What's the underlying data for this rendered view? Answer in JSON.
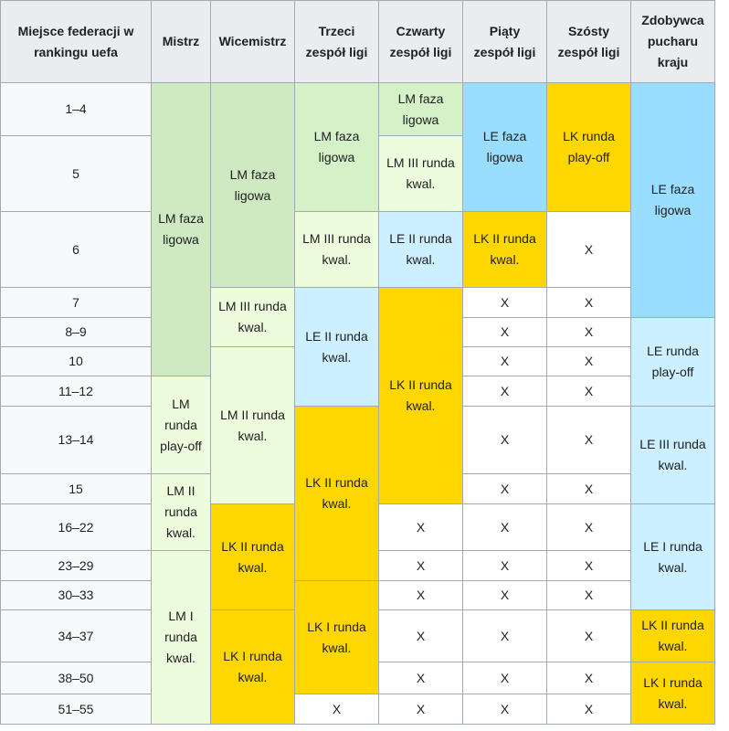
{
  "table": {
    "header": [
      "Miejsce federacji w rankingu uefa",
      "Mistrz",
      "Wicemistrz",
      "Trzeci zespół ligi",
      "Czwarty zespół ligi",
      "Piąty zespół ligi",
      "Szósty zespół ligi",
      "Zdobywca pucharu kraju"
    ],
    "rows": [
      {
        "label": "1–4",
        "cells": [
          {
            "col": 1,
            "text": "LM faza ligowa",
            "rowspan": 6,
            "color": "#cfe9c2"
          },
          {
            "col": 2,
            "text": "LM faza ligowa",
            "rowspan": 3,
            "color": "#cfe9c2"
          },
          {
            "col": 3,
            "text": "LM faza ligowa",
            "rowspan": 2,
            "color": "#d5f1c8"
          },
          {
            "col": 4,
            "text": "LM faza ligowa",
            "color": "#d5f1c8"
          },
          {
            "col": 5,
            "text": "LE faza ligowa",
            "rowspan": 2,
            "color": "#99ddff"
          },
          {
            "col": 6,
            "text": "LK runda play-off",
            "rowspan": 2,
            "color": "#ffd700"
          },
          {
            "col": 7,
            "text": "LE faza ligowa",
            "rowspan": 4,
            "color": "#99ddff"
          }
        ]
      },
      {
        "label": "5",
        "cells": [
          {
            "col": 4,
            "text": "LM III runda kwal.",
            "color": "#ecfcdd"
          }
        ]
      },
      {
        "label": "6",
        "cells": [
          {
            "col": 3,
            "text": "LM III runda kwal.",
            "color": "#ecfcdd"
          },
          {
            "col": 4,
            "text": "LE II runda kwal.",
            "color": "#ccf0ff"
          },
          {
            "col": 5,
            "text": "LK II runda kwal.",
            "color": "#ffd700"
          },
          {
            "col": 6,
            "text": "X"
          }
        ]
      },
      {
        "label": "7",
        "cells": [
          {
            "col": 2,
            "text": "LM III runda kwal.",
            "rowspan": 2,
            "color": "#ecfcdd"
          },
          {
            "col": 3,
            "text": "LE II runda kwal.",
            "rowspan": 4,
            "color": "#ccf0ff"
          },
          {
            "col": 4,
            "text": "LK II runda kwal.",
            "rowspan": 6,
            "color": "#ffd700"
          },
          {
            "col": 5,
            "text": "X"
          },
          {
            "col": 6,
            "text": "X"
          }
        ]
      },
      {
        "label": "8–9",
        "cells": [
          {
            "col": 5,
            "text": "X"
          },
          {
            "col": 6,
            "text": "X"
          },
          {
            "col": 7,
            "text": "LE runda play-off",
            "rowspan": 3,
            "color": "#ccf0ff"
          }
        ]
      },
      {
        "label": "10",
        "cells": [
          {
            "col": 2,
            "text": "LM II runda kwal.",
            "rowspan": 4,
            "color": "#ecfcdd"
          },
          {
            "col": 5,
            "text": "X"
          },
          {
            "col": 6,
            "text": "X"
          }
        ]
      },
      {
        "label": "11–12",
        "cells": [
          {
            "col": 1,
            "text": "LM runda play-off",
            "rowspan": 2,
            "color": "#ecfcdd"
          },
          {
            "col": 5,
            "text": "X"
          },
          {
            "col": 6,
            "text": "X"
          }
        ]
      },
      {
        "label": "13–14",
        "cells": [
          {
            "col": 3,
            "text": "LK II runda kwal.",
            "rowspan": 4,
            "color": "#ffd700"
          },
          {
            "col": 5,
            "text": "X"
          },
          {
            "col": 6,
            "text": "X"
          },
          {
            "col": 7,
            "text": "LE III runda kwal.",
            "rowspan": 2,
            "color": "#ccf0ff"
          }
        ]
      },
      {
        "label": "15",
        "cells": [
          {
            "col": 1,
            "text": "LM II runda kwal.",
            "rowspan": 2,
            "color": "#ecfcdd"
          },
          {
            "col": 5,
            "text": "X"
          },
          {
            "col": 6,
            "text": "X"
          }
        ]
      },
      {
        "label": "16–22",
        "cells": [
          {
            "col": 2,
            "text": "LK II runda kwal.",
            "rowspan": 3,
            "color": "#ffd700"
          },
          {
            "col": 4,
            "text": "X"
          },
          {
            "col": 5,
            "text": "X"
          },
          {
            "col": 6,
            "text": "X"
          },
          {
            "col": 7,
            "text": "LE I runda kwal.",
            "rowspan": 3,
            "color": "#ccf0ff"
          }
        ]
      },
      {
        "label": "23–29",
        "cells": [
          {
            "col": 1,
            "text": "LM I runda kwal.",
            "rowspan": 5,
            "color": "#ecfcdd"
          },
          {
            "col": 4,
            "text": "X"
          },
          {
            "col": 5,
            "text": "X"
          },
          {
            "col": 6,
            "text": "X"
          }
        ]
      },
      {
        "label": "30–33",
        "cells": [
          {
            "col": 3,
            "text": "LK I runda kwal.",
            "rowspan": 3,
            "color": "#ffd700"
          },
          {
            "col": 4,
            "text": "X"
          },
          {
            "col": 5,
            "text": "X"
          },
          {
            "col": 6,
            "text": "X"
          }
        ]
      },
      {
        "label": "34–37",
        "cells": [
          {
            "col": 2,
            "text": "LK I runda kwal.",
            "rowspan": 3,
            "color": "#ffd700"
          },
          {
            "col": 4,
            "text": "X"
          },
          {
            "col": 5,
            "text": "X"
          },
          {
            "col": 6,
            "text": "X"
          },
          {
            "col": 7,
            "text": "LK II runda kwal.",
            "color": "#ffd700"
          }
        ]
      },
      {
        "label": "38–50",
        "cells": [
          {
            "col": 4,
            "text": "X"
          },
          {
            "col": 5,
            "text": "X"
          },
          {
            "col": 6,
            "text": "X"
          },
          {
            "col": 7,
            "text": "LK I runda kwal.",
            "rowspan": 2,
            "color": "#ffd700"
          }
        ]
      },
      {
        "label": "51–55",
        "cells": [
          {
            "col": 3,
            "text": "X"
          },
          {
            "col": 4,
            "text": "X"
          },
          {
            "col": 5,
            "text": "X"
          },
          {
            "col": 6,
            "text": "X"
          }
        ]
      }
    ]
  }
}
